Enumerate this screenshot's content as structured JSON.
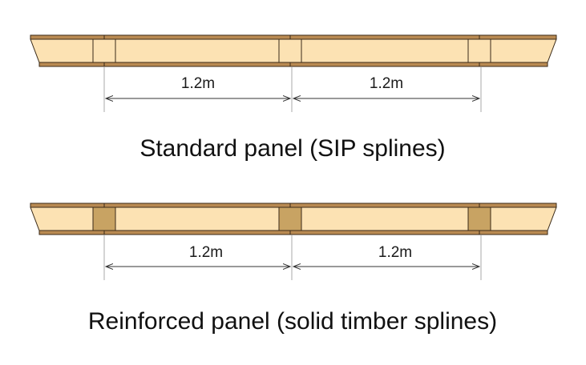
{
  "panels": [
    {
      "caption": "Standard panel (SIP splines)",
      "spline_type": "sip",
      "dimensions": [
        "1.2m",
        "1.2m"
      ]
    },
    {
      "caption": "Reinforced panel (solid timber splines)",
      "spline_type": "solid",
      "dimensions": [
        "1.2m",
        "1.2m"
      ]
    }
  ],
  "colors": {
    "core": "#fce2b3",
    "skin": "#b98a52",
    "outline": "#3a2a18",
    "spline_sip_fill": "#fce2b3",
    "spline_solid_fill": "#c8a363",
    "dimension_line": "#333333"
  }
}
